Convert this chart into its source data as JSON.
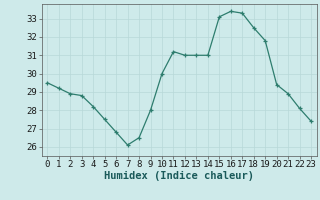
{
  "x": [
    0,
    1,
    2,
    3,
    4,
    5,
    6,
    7,
    8,
    9,
    10,
    11,
    12,
    13,
    14,
    15,
    16,
    17,
    18,
    19,
    20,
    21,
    22,
    23
  ],
  "y": [
    29.5,
    29.2,
    28.9,
    28.8,
    28.2,
    27.5,
    26.8,
    26.1,
    26.5,
    28.0,
    30.0,
    31.2,
    31.0,
    31.0,
    31.0,
    33.1,
    33.4,
    33.3,
    32.5,
    31.8,
    29.4,
    28.9,
    28.1,
    27.4
  ],
  "xlabel": "Humidex (Indice chaleur)",
  "ylim": [
    25.5,
    33.8
  ],
  "xlim": [
    -0.5,
    23.5
  ],
  "yticks": [
    26,
    27,
    28,
    29,
    30,
    31,
    32,
    33
  ],
  "xticks": [
    0,
    1,
    2,
    3,
    4,
    5,
    6,
    7,
    8,
    9,
    10,
    11,
    12,
    13,
    14,
    15,
    16,
    17,
    18,
    19,
    20,
    21,
    22,
    23
  ],
  "line_color": "#2e7d6e",
  "marker": "+",
  "bg_color": "#ceeaea",
  "grid_color": "#b8d8d8",
  "tick_label_fontsize": 6.5,
  "xlabel_fontsize": 7.5
}
